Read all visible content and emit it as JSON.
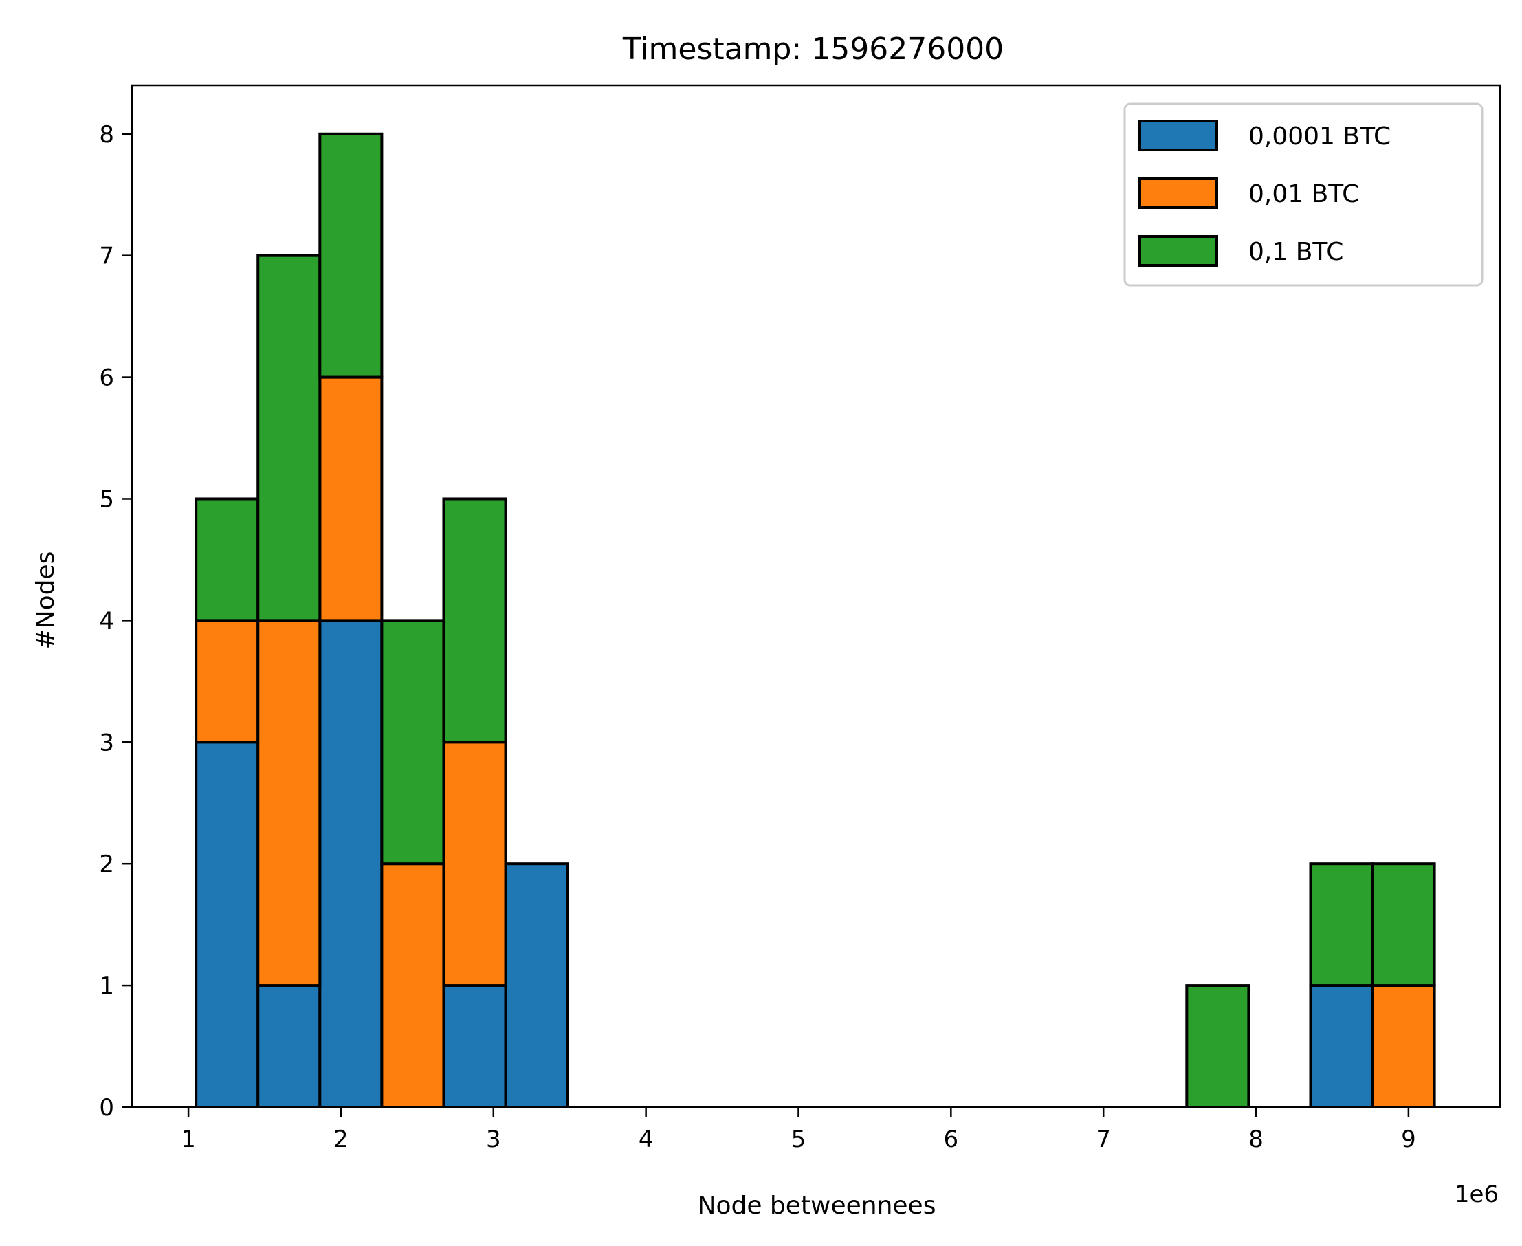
{
  "chart_data": {
    "type": "bar",
    "subtype": "stacked-histogram",
    "title": "Timestamp: 1596276000",
    "xlabel": "Node betweennees",
    "ylabel": "#Nodes",
    "x_offset_label": "1e6",
    "xlim": [
      0.63,
      9.6
    ],
    "ylim": [
      0,
      8.4
    ],
    "xticks": [
      1,
      2,
      3,
      4,
      5,
      6,
      7,
      8,
      9
    ],
    "yticks": [
      0,
      1,
      2,
      3,
      4,
      5,
      6,
      7,
      8
    ],
    "bin_edges": [
      1.05,
      1.456,
      1.862,
      2.268,
      2.674,
      3.08,
      3.486,
      3.892,
      4.298,
      4.704,
      5.11,
      5.516,
      5.922,
      6.328,
      6.734,
      7.14,
      7.546,
      7.952,
      8.358,
      8.764,
      9.17
    ],
    "grid": false,
    "legend_position": "top-right",
    "edge_color": "#000000",
    "series": [
      {
        "name": "0,0001 BTC",
        "color": "#1f77b4",
        "values": [
          3,
          1,
          4,
          0,
          1,
          2,
          0,
          0,
          0,
          0,
          0,
          0,
          0,
          0,
          0,
          0,
          0,
          0,
          1,
          0
        ]
      },
      {
        "name": "0,01 BTC",
        "color": "#ff7f0e",
        "values": [
          1,
          3,
          2,
          2,
          2,
          0,
          0,
          0,
          0,
          0,
          0,
          0,
          0,
          0,
          0,
          0,
          0,
          0,
          0,
          1
        ]
      },
      {
        "name": "0,1 BTC",
        "color": "#2ca02c",
        "values": [
          1,
          3,
          2,
          2,
          2,
          0,
          0,
          0,
          0,
          0,
          0,
          0,
          0,
          0,
          0,
          0,
          1,
          0,
          1,
          1
        ]
      }
    ]
  }
}
